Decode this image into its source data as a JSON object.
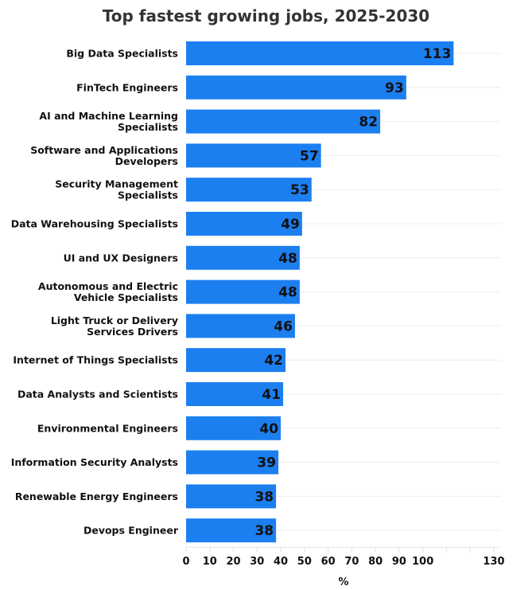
{
  "chart_data": {
    "type": "bar",
    "orientation": "horizontal",
    "title": "Top fastest growing jobs, 2025-2030",
    "xlabel": "%",
    "ylabel": "",
    "xlim": [
      0,
      130
    ],
    "x_ticks": [
      0,
      10,
      20,
      30,
      40,
      50,
      60,
      70,
      80,
      90,
      100,
      110,
      120,
      130
    ],
    "x_tick_labels": [
      "0",
      "10",
      "20",
      "30",
      "40",
      "50",
      "60",
      "70",
      "80",
      "90",
      "100",
      "",
      "",
      "130"
    ],
    "grid": true,
    "bar_color": "#1c7ff0",
    "categories": [
      [
        "Big Data Specialists"
      ],
      [
        "FinTech Engineers"
      ],
      [
        "AI and Machine Learning",
        "Specialists"
      ],
      [
        "Software and Applications",
        "Developers"
      ],
      [
        "Security Management",
        "Specialists"
      ],
      [
        "Data Warehousing Specialists"
      ],
      [
        "UI and UX Designers"
      ],
      [
        "Autonomous and Electric",
        "Vehicle Specialists"
      ],
      [
        "Light Truck or Delivery",
        "Services Drivers"
      ],
      [
        "Internet of Things Specialists"
      ],
      [
        "Data Analysts and Scientists"
      ],
      [
        "Environmental Engineers"
      ],
      [
        "Information Security Analysts"
      ],
      [
        "Renewable Energy Engineers"
      ],
      [
        "Devops Engineer"
      ]
    ],
    "values": [
      113,
      93,
      82,
      57,
      53,
      49,
      48,
      48,
      46,
      42,
      41,
      40,
      39,
      38,
      38
    ]
  }
}
